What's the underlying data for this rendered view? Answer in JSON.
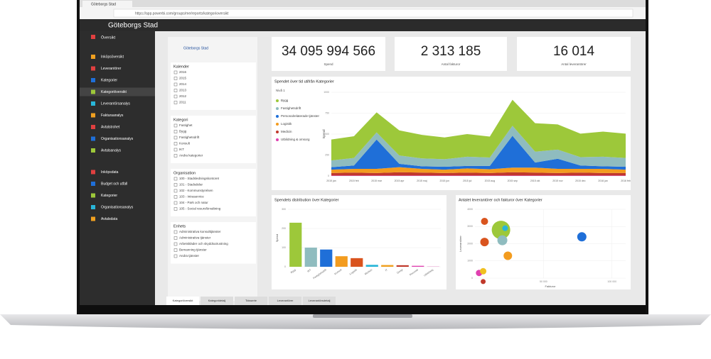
{
  "browser": {
    "tab": "Göteborgs Stad",
    "url": "https://app.powerbi.com/groups/me/reports/kategorioversikt"
  },
  "app": {
    "title": "Göteborgs Stad",
    "logo": "Göteborgs Stad"
  },
  "sidebar": {
    "top": "Översikt",
    "groups": [
      [
        "Inköpsöversikt",
        "Leverantörer",
        "Kategorier",
        "Kategoriöversikt",
        "Leverantörsanalys",
        "Fakturaanalys",
        "Avtalstrohet",
        "Organisationsanalys",
        "Avtalsanalys"
      ],
      [
        "Inköpsdata",
        "Budget och utfall",
        "Kategorier",
        "Organisationsanalys",
        "Avtalsdata"
      ]
    ]
  },
  "filters": [
    {
      "title": "Kalender",
      "items": [
        "2016",
        "2015",
        "2014",
        "2013",
        "2012",
        "2011"
      ]
    },
    {
      "title": "Kategori",
      "items": [
        "Fastighet",
        "Bygg",
        "Fastighetsdrift",
        "Konsult",
        "IKT",
        "Andra kategorier"
      ]
    },
    {
      "title": "Organisation",
      "items": [
        "100 - Stadsledningskontoret",
        "101 - Stadsdelar",
        "102 - Kommunstyrelsen",
        "103 - Intraservice",
        "104 - Park och natur",
        "105 - Social resursförvaltning"
      ]
    },
    {
      "title": "Enhets",
      "items": [
        "Administrativa konsulttjänster",
        "Administrativa tjänster",
        "Arbetskläder och skyddsutrustning",
        "Bemanning tjänster",
        "Andra tjänster"
      ]
    }
  ],
  "kpis": [
    {
      "value": "34 095 994 566",
      "label": "Spend"
    },
    {
      "value": "2 313 185",
      "label": "Antal fakturor"
    },
    {
      "value": "16 014",
      "label": "Antal leverantörer"
    }
  ],
  "tabs": [
    "Kategoriöversikt",
    "Kategoridetalj",
    "Tidsserie",
    "Leverantörer",
    "Leverantörsdetalj"
  ],
  "chart_data": [
    {
      "type": "area",
      "title": "Spendet över tid utifrån Kategorier",
      "legend_title": "Nivå 1",
      "y_label": "Spend",
      "categories": [
        "2015 jan",
        "2015 feb",
        "2015 mar",
        "2015 apr",
        "2015 maj",
        "2015 jun",
        "2015 jul",
        "2015 aug",
        "2015 sep",
        "2015 okt",
        "2015 nov",
        "2015 dec",
        "2016 jan",
        "2016 feb"
      ],
      "ylim": [
        0,
        1000
      ],
      "yticks": [
        0,
        250,
        500,
        750,
        1000
      ],
      "series": [
        {
          "name": "Utbildning & omsorg",
          "color": "#e040b0",
          "values": [
            5,
            5,
            5,
            5,
            5,
            5,
            5,
            5,
            5,
            5,
            5,
            5,
            5,
            5
          ]
        },
        {
          "name": "Medicin",
          "color": "#c0392b",
          "values": [
            30,
            35,
            30,
            40,
            35,
            30,
            35,
            30,
            40,
            35,
            30,
            35,
            30,
            30
          ]
        },
        {
          "name": "Logistik",
          "color": "#f39c1f",
          "values": [
            40,
            45,
            50,
            60,
            45,
            40,
            50,
            45,
            55,
            60,
            50,
            45,
            50,
            40
          ]
        },
        {
          "name": "Personalrelaterade tjänster",
          "color": "#1f6fd8",
          "values": [
            30,
            40,
            350,
            40,
            30,
            35,
            30,
            40,
            380,
            60,
            120,
            40,
            30,
            35
          ]
        },
        {
          "name": "Fastighetsdrift",
          "color": "#8fbcbf",
          "values": [
            80,
            90,
            85,
            100,
            95,
            90,
            110,
            100,
            120,
            130,
            110,
            100,
            115,
            105
          ]
        },
        {
          "name": "Bygg",
          "color": "#9dc83a",
          "values": [
            250,
            260,
            240,
            300,
            280,
            260,
            270,
            250,
            310,
            340,
            300,
            280,
            300,
            290
          ]
        }
      ]
    },
    {
      "type": "bar",
      "title": "Spendets distribution över Kategorier",
      "y_label": "Spend",
      "categories": [
        "Bygg",
        "IKT",
        "Fastighetsdrift",
        "Konsult",
        "Logistik",
        "Medicin",
        "IT",
        "Övrigt",
        "Personal",
        "Utbildning"
      ],
      "values": [
        230,
        100,
        90,
        55,
        45,
        10,
        9,
        8,
        5,
        3
      ],
      "colors": [
        "#9dc83a",
        "#8fbcbf",
        "#1f6fd8",
        "#f39c1f",
        "#d9541e",
        "#29b6d8",
        "#f0a020",
        "#c0392b",
        "#e040b0",
        "#f0c0e0"
      ],
      "ylim": [
        0,
        300
      ],
      "yticks": [
        0,
        100,
        200,
        300
      ]
    },
    {
      "type": "scatter",
      "title": "Antalet leverantörer och fakturor över Kategorier",
      "x_label": "Fakturor",
      "y_label": "Leverantörer",
      "xlim": [
        0,
        110000
      ],
      "xticks": [
        {
          "value": 50000,
          "label": "50 000"
        },
        {
          "value": 100000,
          "label": "100 000"
        }
      ],
      "ylim": [
        0,
        4000
      ],
      "yticks": [
        0,
        1000,
        2000,
        3000,
        4000
      ],
      "x": [
        7000,
        19000,
        22000,
        7000,
        20000,
        24000,
        78000,
        3000,
        6000,
        6000
      ],
      "y": [
        3300,
        2800,
        2900,
        2100,
        2200,
        1300,
        2400,
        300,
        400,
        -200
      ],
      "sizes": [
        6,
        22,
        4,
        8,
        10,
        8,
        9,
        5,
        5,
        3
      ],
      "colors": [
        "#d9541e",
        "#9dc83a",
        "#29b6d8",
        "#d9541e",
        "#8fbcbf",
        "#f39c1f",
        "#1f6fd8",
        "#e040b0",
        "#f0c020",
        "#c0392b"
      ]
    }
  ]
}
